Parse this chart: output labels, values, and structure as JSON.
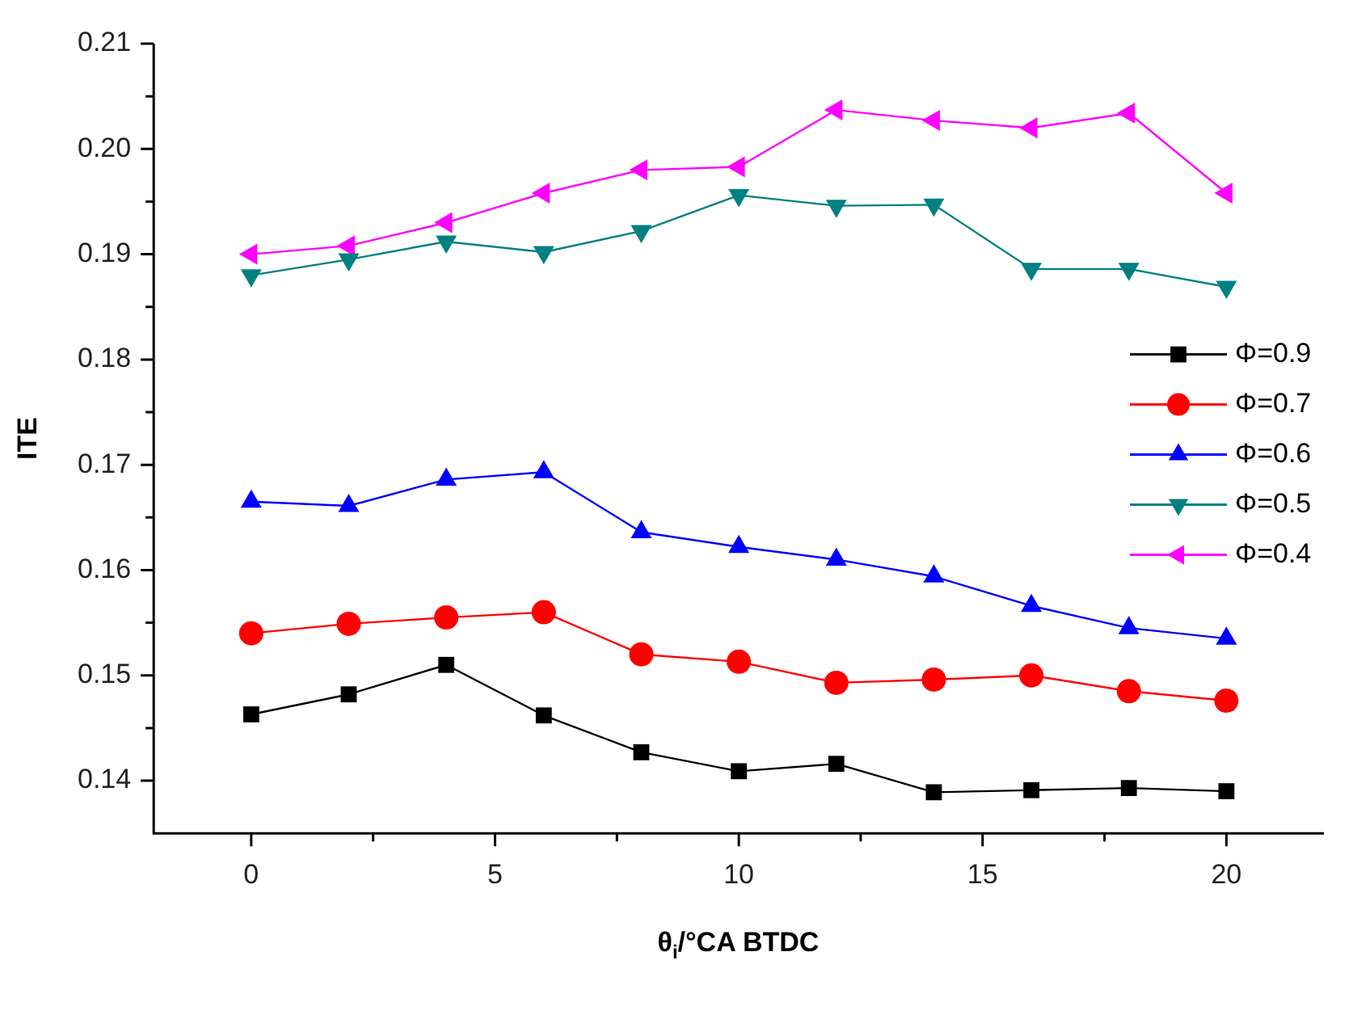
{
  "chart_data": {
    "type": "line",
    "xlabel": "θ$_{i}$/°CA BTDC",
    "ylabel": "ITE",
    "x": [
      0,
      2,
      4,
      6,
      8,
      10,
      12,
      14,
      16,
      18,
      20
    ],
    "xlim": [
      -2,
      22
    ],
    "xticks": [
      0,
      5,
      10,
      15,
      20
    ],
    "ylim": [
      0.135,
      0.21
    ],
    "yticks": [
      0.14,
      0.15,
      0.16,
      0.17,
      0.18,
      0.19,
      {
        "value": 0.2,
        "label": "0.20"
      },
      0.21
    ],
    "grid": false,
    "legend": "right",
    "line_style": "solid",
    "series": [
      {
        "name": "Φ=0.9",
        "color": "#000000",
        "marker": "square",
        "values": [
          0.1463,
          0.1482,
          0.151,
          0.1462,
          0.1427,
          0.1409,
          0.1416,
          0.1389,
          0.1391,
          0.1393,
          0.139
        ]
      },
      {
        "name": "Φ=0.7",
        "color": "#ff0000",
        "marker": "circle",
        "values": [
          0.154,
          0.1549,
          0.1555,
          0.156,
          0.152,
          0.1513,
          0.1493,
          0.1496,
          0.15,
          0.1485,
          0.1476
        ]
      },
      {
        "name": "Φ=0.6",
        "color": "#0000ff",
        "marker": "triangle",
        "values": [
          0.1665,
          0.1661,
          0.1686,
          0.1693,
          0.1636,
          0.1622,
          0.161,
          0.1594,
          0.1566,
          0.1545,
          0.1535
        ]
      },
      {
        "name": "Φ=0.5",
        "color": "#008080",
        "marker": "triangle-down",
        "values": [
          0.188,
          0.1895,
          0.1912,
          0.1902,
          0.1922,
          0.1956,
          0.1946,
          0.1947,
          0.1886,
          0.1886,
          0.1869
        ]
      },
      {
        "name": "Φ=0.4",
        "color": "#ff00ff",
        "marker": "triangle-left",
        "values": [
          0.19,
          0.1908,
          0.193,
          0.1958,
          0.198,
          0.1983,
          0.2037,
          0.2027,
          0.202,
          0.2034,
          0.1958
        ]
      }
    ]
  }
}
